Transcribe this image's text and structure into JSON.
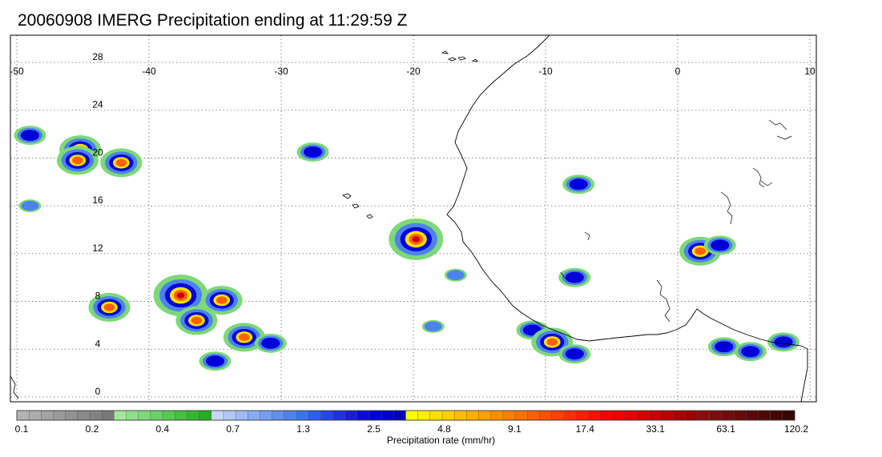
{
  "title": "20060908 IMERG Precipitation ending at 11:29:59 Z",
  "map": {
    "lon_ticks": [
      -50,
      -40,
      -30,
      -20,
      -10,
      0,
      10
    ],
    "lat_ticks": [
      0,
      4,
      8,
      12,
      16,
      20,
      24,
      28
    ],
    "lon_range": [
      -50,
      10
    ],
    "lat_range": [
      -0.5,
      30
    ],
    "grid": "dotted",
    "coastline": "West Africa",
    "precip_cells": [
      {
        "lon": -45.2,
        "lat": 20.7,
        "level": "heavy"
      },
      {
        "lon": -45.4,
        "lat": 19.8,
        "level": "heavy"
      },
      {
        "lon": -49.0,
        "lat": 21.9,
        "level": "moderate"
      },
      {
        "lon": -42.1,
        "lat": 19.6,
        "level": "heavy"
      },
      {
        "lon": -49.0,
        "lat": 16.0,
        "level": "light"
      },
      {
        "lon": -43.0,
        "lat": 7.5,
        "level": "heavy"
      },
      {
        "lon": -37.6,
        "lat": 8.5,
        "level": "extreme"
      },
      {
        "lon": -34.5,
        "lat": 8.1,
        "level": "heavy"
      },
      {
        "lon": -36.4,
        "lat": 6.4,
        "level": "heavy"
      },
      {
        "lon": -32.8,
        "lat": 5.0,
        "level": "heavy"
      },
      {
        "lon": -35.0,
        "lat": 3.0,
        "level": "moderate"
      },
      {
        "lon": -30.8,
        "lat": 4.5,
        "level": "moderate"
      },
      {
        "lon": -27.6,
        "lat": 20.5,
        "level": "moderate"
      },
      {
        "lon": -19.8,
        "lat": 13.2,
        "level": "extreme"
      },
      {
        "lon": -18.5,
        "lat": 5.9,
        "level": "light"
      },
      {
        "lon": -16.8,
        "lat": 10.2,
        "level": "light"
      },
      {
        "lon": -11.0,
        "lat": 5.6,
        "level": "moderate"
      },
      {
        "lon": -9.5,
        "lat": 4.6,
        "level": "heavy"
      },
      {
        "lon": -7.8,
        "lat": 3.6,
        "level": "moderate"
      },
      {
        "lon": -7.5,
        "lat": 17.8,
        "level": "moderate"
      },
      {
        "lon": -7.8,
        "lat": 10.0,
        "level": "moderate"
      },
      {
        "lon": 1.7,
        "lat": 12.2,
        "level": "heavy"
      },
      {
        "lon": 3.2,
        "lat": 12.7,
        "level": "moderate"
      },
      {
        "lon": 3.5,
        "lat": 4.2,
        "level": "moderate"
      },
      {
        "lon": 5.5,
        "lat": 3.8,
        "level": "moderate"
      },
      {
        "lon": 8.0,
        "lat": 4.6,
        "level": "moderate"
      }
    ]
  },
  "colorbar": {
    "tick_labels": [
      "0.1",
      "0.2",
      "0.4",
      "0.7",
      "1.3",
      "2.5",
      "4.8",
      "9.1",
      "17.4",
      "33.1",
      "63.1",
      "120.2"
    ],
    "title": "Precipitation rate (mm/hr)",
    "colors": [
      "#b4b4b4",
      "#acacac",
      "#a3a3a3",
      "#9b9b9b",
      "#929292",
      "#8a8a8a",
      "#818181",
      "#797979",
      "#a2e89c",
      "#8fe08a",
      "#7dd878",
      "#6ad066",
      "#58c854",
      "#46bf42",
      "#34b730",
      "#23ad20",
      "#c7d6fa",
      "#b2c8f7",
      "#9ebaf4",
      "#89acf1",
      "#759ef0",
      "#6190ef",
      "#4d82ee",
      "#3a74ed",
      "#2b5df0",
      "#2548e7",
      "#1f33de",
      "#1a1ed5",
      "#0c09d6",
      "#0000d8",
      "#0000ce",
      "#0000bd",
      "#ffff00",
      "#ffef00",
      "#ffdf00",
      "#ffcf00",
      "#ffbf00",
      "#ffaf00",
      "#ff9f00",
      "#ff8f00",
      "#ff7f00",
      "#ff7000",
      "#ff6000",
      "#ff5000",
      "#ff4000",
      "#ff3000",
      "#ff2000",
      "#ff1000",
      "#ff0000",
      "#f20000",
      "#e40000",
      "#d60000",
      "#c80000",
      "#ba0000",
      "#ac0000",
      "#9e0000",
      "#8a0d0d",
      "#7e0c0c",
      "#720b0b",
      "#660a0a",
      "#5a0909",
      "#4e0808",
      "#420707",
      "#360606"
    ]
  }
}
